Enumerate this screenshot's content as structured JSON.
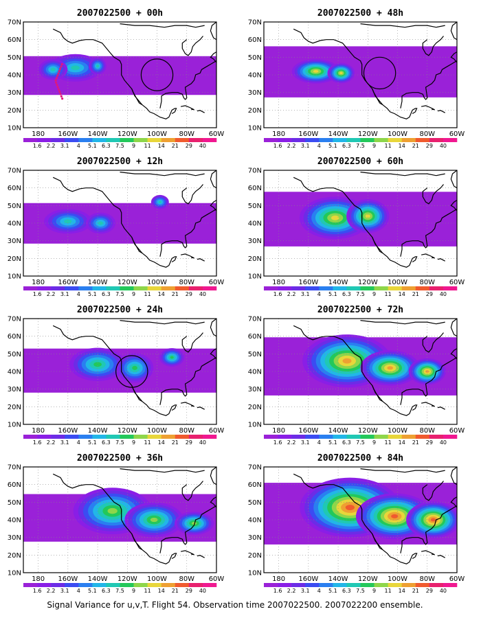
{
  "figure": {
    "footer": "Signal Variance for u,v,T. Flight 54. Observation time 2007022500. 2007022200 ensemble."
  },
  "axes": {
    "lon_ticks": [
      "180",
      "160W",
      "140W",
      "120W",
      "100W",
      "80W",
      "60W"
    ],
    "lat_ticks": [
      "10N",
      "20N",
      "30N",
      "40N",
      "50N",
      "60N",
      "70N"
    ]
  },
  "colorbar": {
    "labels": [
      "1.6",
      "2.2",
      "3.1",
      "4",
      "5.1",
      "6.3",
      "7.5",
      "9",
      "11",
      "14",
      "21",
      "29",
      "40"
    ],
    "colors": [
      "#9a21d8",
      "#8a1ee6",
      "#6c2ce6",
      "#3b4cf2",
      "#2a7ff0",
      "#22b6e8",
      "#20c8b4",
      "#23c85a",
      "#8ed64a",
      "#e8d63a",
      "#eea032",
      "#f05a2e",
      "#e8206e",
      "#f01890"
    ]
  },
  "panels": [
    {
      "title": "2007022500 + 00h",
      "lead_hours": 0,
      "has_circle": true,
      "has_track": true,
      "intensity": 0.7
    },
    {
      "title": "2007022500 + 48h",
      "lead_hours": 48,
      "has_circle": true,
      "has_track": false,
      "intensity": 1.4
    },
    {
      "title": "2007022500 + 12h",
      "lead_hours": 12,
      "has_circle": false,
      "has_track": false,
      "intensity": 0.8
    },
    {
      "title": "2007022500 + 60h",
      "lead_hours": 60,
      "has_circle": false,
      "has_track": false,
      "intensity": 1.6
    },
    {
      "title": "2007022500 + 24h",
      "lead_hours": 24,
      "has_circle": true,
      "has_track": false,
      "intensity": 1.0
    },
    {
      "title": "2007022500 + 72h",
      "lead_hours": 72,
      "has_circle": false,
      "has_track": false,
      "intensity": 1.8
    },
    {
      "title": "2007022500 + 36h",
      "lead_hours": 36,
      "has_circle": false,
      "has_track": false,
      "intensity": 1.2
    },
    {
      "title": "2007022500 + 84h",
      "lead_hours": 84,
      "has_circle": false,
      "has_track": false,
      "intensity": 2.0
    }
  ]
}
